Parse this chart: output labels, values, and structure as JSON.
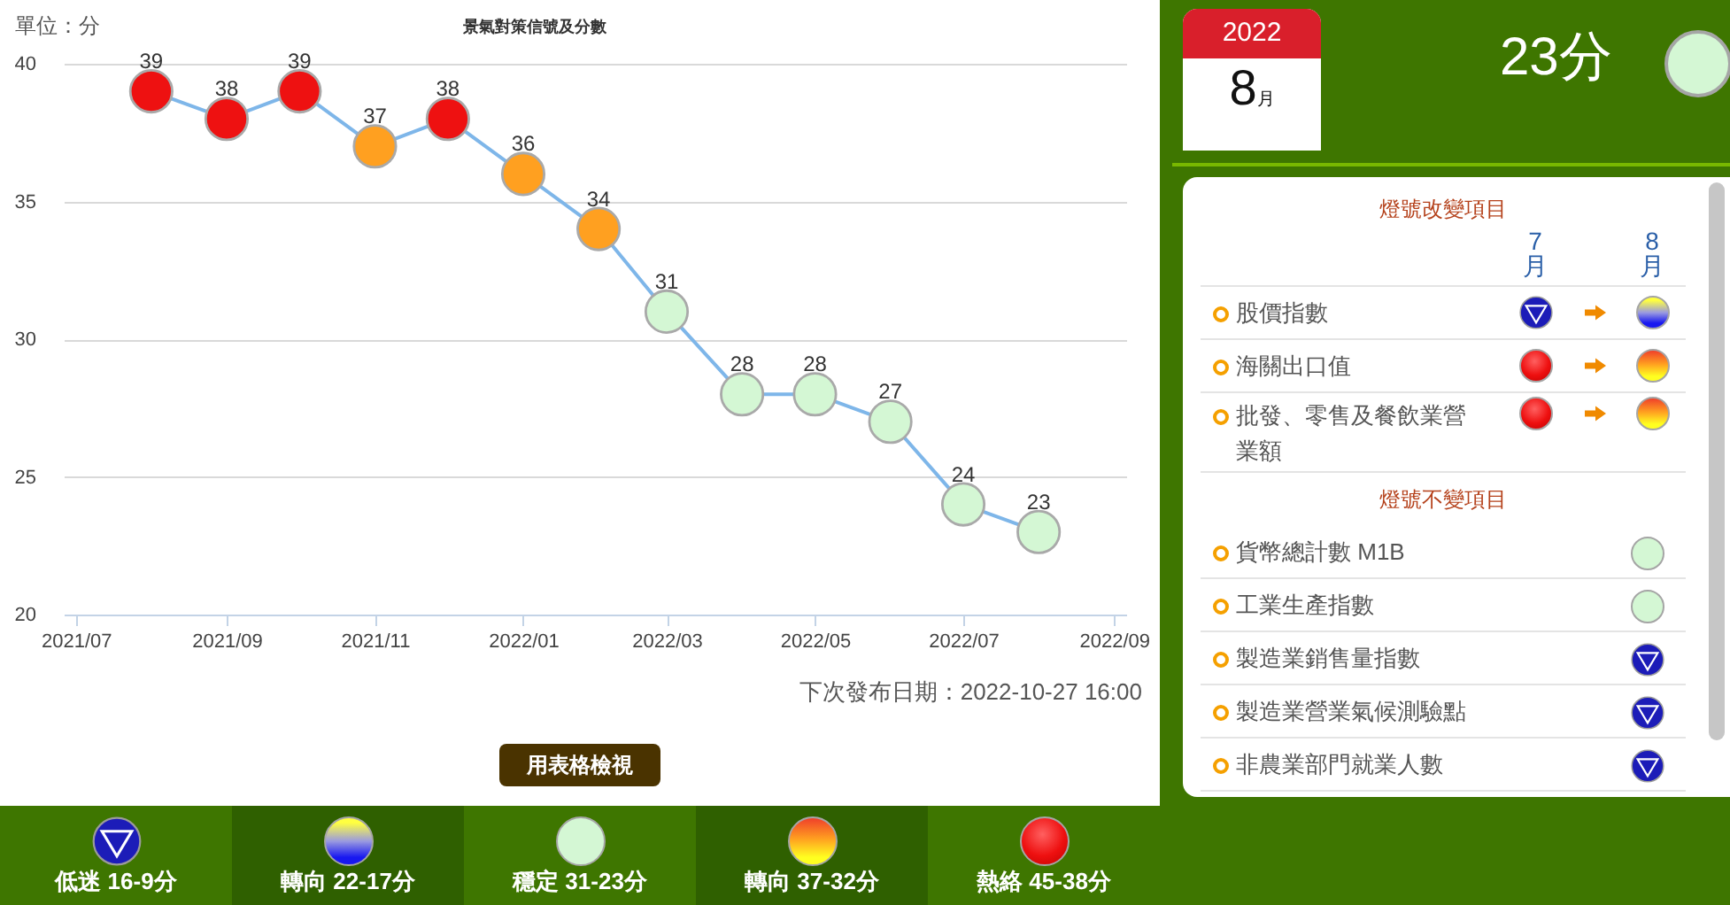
{
  "chart_data": [
    {
      "type": "line",
      "title": "景氣對策信號及分數",
      "ylabel": "單位：分",
      "x": [
        "2021-08",
        "2021-09",
        "2021-10",
        "2021-11",
        "2021-12",
        "2022-01",
        "2022-02",
        "2022-03",
        "2022-04",
        "2022-05",
        "2022-06",
        "2022-07",
        "2022-08"
      ],
      "values": [
        39,
        38,
        39,
        37,
        38,
        36,
        34,
        31,
        28,
        28,
        27,
        24,
        23
      ],
      "color": "#7eb6e9",
      "colors": [
        "#ee1111",
        "#ee1111",
        "#ee1111",
        "#ffa020",
        "#ee1111",
        "#ffa020",
        "#ffa020",
        "#d4f7d4",
        "#d4f7d4",
        "#d4f7d4",
        "#d4f7d4",
        "#d4f7d4",
        "#d4f7d4"
      ],
      "marker": "circle",
      "data_labels": true,
      "xlim": [
        "2021-06-26",
        "2022-09-06"
      ],
      "xticks": [
        {
          "value": "2021-07",
          "label": "2021/07"
        },
        {
          "value": "2021-09",
          "label": "2021/09"
        },
        {
          "value": "2021-11",
          "label": "2021/11"
        },
        {
          "value": "2022-01",
          "label": "2022/01"
        },
        {
          "value": "2022-03",
          "label": "2022/03"
        },
        {
          "value": "2022-05",
          "label": "2022/05"
        },
        {
          "value": "2022-07",
          "label": "2022/07"
        },
        {
          "value": "2022-09",
          "label": "2022/09"
        }
      ],
      "ylim": [
        20,
        40
      ],
      "yticks": [
        20,
        25,
        30,
        35,
        40
      ],
      "grid": "y",
      "annotations": [
        "下次發布日期：2022-10-27 16:00",
        "用表格檢視"
      ]
    },
    {
      "type": "other",
      "annotations": [
        "2022",
        "8月",
        "23分",
        "燈號改變項目",
        "7月",
        "8月",
        "股價指數",
        "海關出口值",
        "批發、零售及餐飲業營業額",
        "燈號不變項目",
        "貨幣總計數 M1B",
        "工業生產指數",
        "製造業銷售量指數",
        "製造業營業氣候測驗點",
        "非農業部門就業人數"
      ]
    },
    {
      "type": "other",
      "annotations": [
        "低迷 16-9分",
        "轉向 22-17分",
        "穩定 31-23分",
        "轉向 37-32分",
        "熱絡 45-38分"
      ]
    }
  ]
}
